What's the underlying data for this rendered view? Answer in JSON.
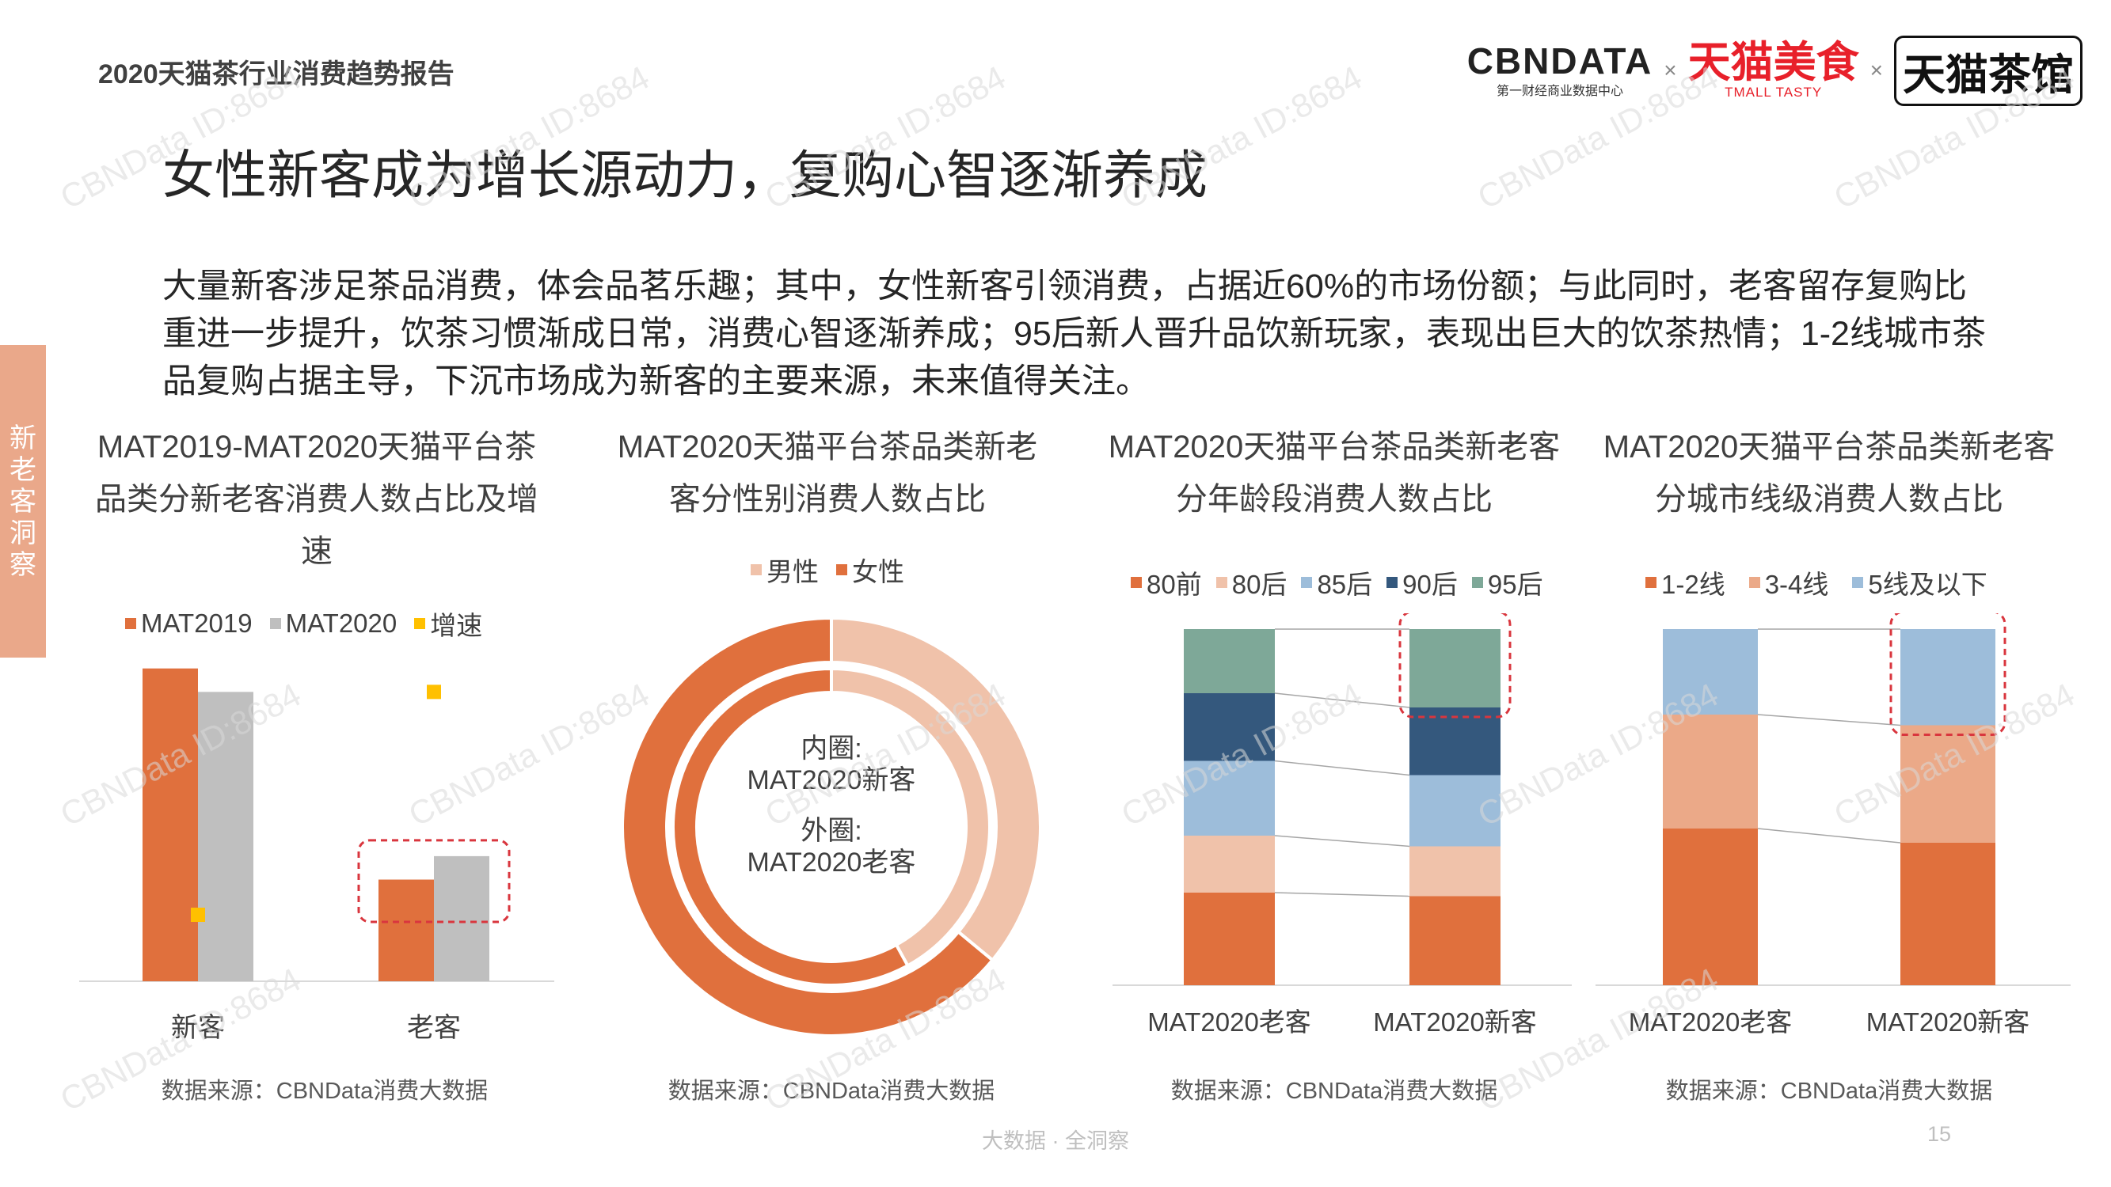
{
  "header": {
    "report_title": "2020天猫茶行业消费趋势报告",
    "logo_cbn": "CBNDATA",
    "logo_cbn_sub": "第一财经商业数据中心",
    "logo_sep": "×",
    "logo_tmall_food": "天猫美食",
    "logo_tmall_food_sub": "TMALL TASTY",
    "logo_tea_house": "天猫茶馆"
  },
  "headline": "女性新客成为增长源动力，复购心智逐渐养成",
  "summary": "大量新客涉足茶品消费，体会品茗乐趣；其中，女性新客引领消费，占据近60%的市场份额；与此同时，老客留存复购比重进一步提升，饮茶习惯渐成日常，消费心智逐渐养成；95后新人晋升品饮新玩家，表现出巨大的饮茶热情；1-2线城市茶品复购占据主导，下沉市场成为新客的主要来源，未来值得关注。",
  "sidetab": [
    "新",
    "老",
    "客",
    "洞",
    "察"
  ],
  "footer": "大数据 · 全洞察",
  "page_number": "15",
  "watermark": "CBNData ID:8684",
  "colors": {
    "orange": "#e0703d",
    "gray": "#bfbfbf",
    "yellow": "#ffc000",
    "peach": "#f0c2aa",
    "salmon": "#eba988",
    "light_blue": "#9dbdda",
    "navy": "#34587d",
    "teal": "#7ea898",
    "highlight": "#d9363e"
  },
  "chart_data": [
    {
      "type": "bar",
      "title": "MAT2019-MAT2020天猫平台茶品类分新老客消费人数占比及增速",
      "categories": [
        "新客",
        "老客"
      ],
      "series": [
        {
          "name": "MAT2019",
          "values": [
            0.8,
            0.26
          ]
        },
        {
          "name": "MAT2020",
          "values": [
            0.74,
            0.32
          ]
        }
      ],
      "growth": {
        "name": "增速",
        "values": [
          0.17,
          0.74
        ]
      },
      "ylim": [
        0,
        0.85
      ],
      "highlight_category": "老客",
      "source": "数据来源：CBNData消费大数据"
    },
    {
      "type": "pie",
      "title": "MAT2020天猫平台茶品类新老客分性别消费人数占比",
      "legend": [
        "男性",
        "女性"
      ],
      "rings": [
        {
          "label": "内圈:",
          "name": "MAT2020新客",
          "values": [
            0.42,
            0.58
          ]
        },
        {
          "label": "外圈:",
          "name": "MAT2020老客",
          "values": [
            0.36,
            0.64
          ]
        }
      ],
      "source": "数据来源：CBNData消费大数据"
    },
    {
      "type": "bar",
      "stacked": true,
      "title": "MAT2020天猫平台茶品类新老客分年龄段消费人数占比",
      "categories": [
        "MAT2020老客",
        "MAT2020新客"
      ],
      "series": [
        {
          "name": "80前",
          "values": [
            0.26,
            0.25
          ]
        },
        {
          "name": "80后",
          "values": [
            0.16,
            0.14
          ]
        },
        {
          "name": "85后",
          "values": [
            0.21,
            0.2
          ]
        },
        {
          "name": "90后",
          "values": [
            0.19,
            0.19
          ]
        },
        {
          "name": "95后",
          "values": [
            0.18,
            0.22
          ]
        }
      ],
      "ylim": [
        0,
        1
      ],
      "highlight_segment": {
        "category": "MAT2020新客",
        "series": "95后"
      },
      "source": "数据来源：CBNData消费大数据"
    },
    {
      "type": "bar",
      "stacked": true,
      "title": "MAT2020天猫平台茶品类新老客分城市线级消费人数占比",
      "categories": [
        "MAT2020老客",
        "MAT2020新客"
      ],
      "series": [
        {
          "name": "1-2线",
          "values": [
            0.44,
            0.4
          ]
        },
        {
          "name": "3-4线",
          "values": [
            0.32,
            0.33
          ]
        },
        {
          "name": "5线及以下",
          "values": [
            0.24,
            0.27
          ]
        }
      ],
      "ylim": [
        0,
        1
      ],
      "highlight_segment": {
        "category": "MAT2020新客",
        "series": "5线及以下"
      },
      "source": "数据来源：CBNData消费大数据"
    }
  ]
}
